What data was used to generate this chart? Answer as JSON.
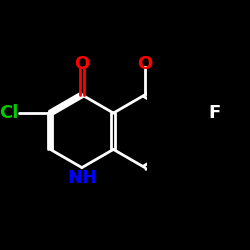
{
  "background_color": "#000000",
  "bond_color": "#ffffff",
  "label_colors": {
    "Cl": "#00cc00",
    "F": "#ffffff",
    "N": "#0000ff",
    "O": "#ff0000",
    "NH": "#0000ff"
  },
  "figsize": [
    2.5,
    2.5
  ],
  "dpi": 100
}
